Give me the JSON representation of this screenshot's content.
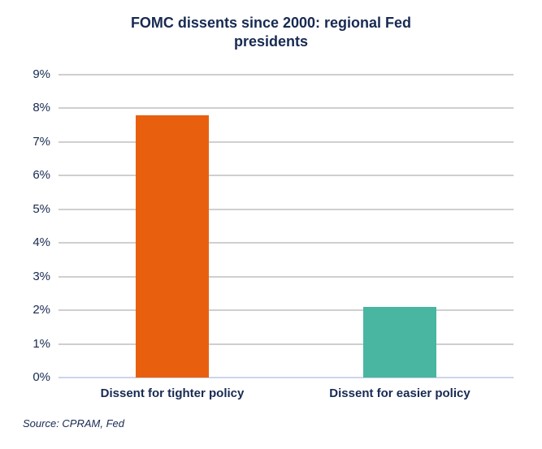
{
  "title": "FOMC dissents since 2000: regional Fed\npresidents",
  "source_note": "Source: CPRAM, Fed",
  "colors": {
    "title_text": "#172A52",
    "axis_text": "#172A52",
    "gridline": "#CFCFCF",
    "baseline": "#CDD4EA",
    "bar_tighter_orange": "#E8600E",
    "bar_easier_teal": "#48B6A0",
    "background": "#FFFFFF"
  },
  "chart_data": {
    "type": "bar",
    "title": "FOMC dissents since 2000: regional Fed presidents",
    "categories": [
      "Dissent for tighter policy",
      "Dissent for easier policy"
    ],
    "values": [
      7.8,
      2.1
    ],
    "bar_colors": [
      "#E8600E",
      "#48B6A0"
    ],
    "xlabel": "",
    "ylabel": "",
    "ylim": [
      0,
      9
    ],
    "y_ticks": [
      "0%",
      "1%",
      "2%",
      "3%",
      "4%",
      "5%",
      "6%",
      "7%",
      "8%",
      "9%"
    ],
    "grid": true,
    "legend": false,
    "source": "Source: CPRAM, Fed"
  }
}
